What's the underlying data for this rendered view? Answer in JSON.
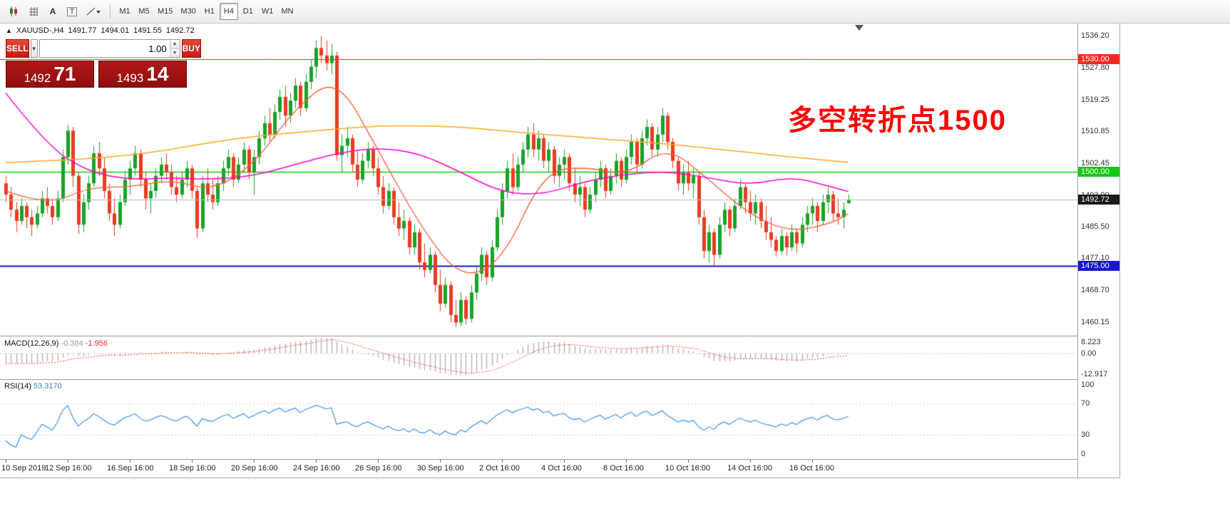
{
  "toolbar": {
    "icons": [
      "candlestick-tool-icon",
      "grid-icon",
      "text-label-icon",
      "text-box-icon",
      "line-studies-icon"
    ],
    "timeframes": [
      {
        "label": "M1",
        "active": false
      },
      {
        "label": "M5",
        "active": false
      },
      {
        "label": "M15",
        "active": false
      },
      {
        "label": "M30",
        "active": false
      },
      {
        "label": "H1",
        "active": false
      },
      {
        "label": "H4",
        "active": true
      },
      {
        "label": "D1",
        "active": false
      },
      {
        "label": "W1",
        "active": false
      },
      {
        "label": "MN",
        "active": false
      }
    ]
  },
  "chart_header": {
    "collapse_arrow": "▲",
    "symbol": "XAUUSD-,H4",
    "open": "1491.77",
    "high": "1494.01",
    "low": "1491.55",
    "close": "1492.72"
  },
  "one_click": {
    "sell_label": "SELL",
    "buy_label": "BUY",
    "volume": "1.00",
    "sell_price_big": "1492",
    "sell_price_pips": "71",
    "buy_price_big": "1493",
    "buy_price_pips": "14"
  },
  "annotation": {
    "text": "多空转折点1500",
    "color": "#fe0000"
  },
  "levels": [
    {
      "price": 1530.0,
      "label": "1530.00",
      "line_color": "#ff2020",
      "badge_bg": "#f52a1e",
      "width": 1
    },
    {
      "price": 1500.0,
      "label": "1500.00",
      "line_color": "#00d400",
      "badge_bg": "#14c814",
      "width": 1.4
    },
    {
      "price": 1475.0,
      "label": "1475.00",
      "line_color": "#1414c8",
      "badge_bg": "#1616d2",
      "width": 2
    }
  ],
  "current_price": {
    "value": 1492.72,
    "label": "1492.72",
    "badge_bg": "#1a1a1a",
    "line_color": "#b8b8b8"
  },
  "price_scale": {
    "ticks": [
      "1536.20",
      "1527.80",
      "1519.25",
      "1510.85",
      "1502.45",
      "1493.90",
      "1485.50",
      "1477.10",
      "1468.70",
      "1460.15"
    ]
  },
  "macd": {
    "label": "MACD(12,26,9)",
    "value": "-0.384",
    "signal": "-1.956",
    "scale": [
      {
        "label": "8.223",
        "value": 8.223
      },
      {
        "label": "0.00",
        "value": 0
      },
      {
        "label": "-12.917",
        "value": -12.917
      }
    ],
    "colors": {
      "histogram": "#b4b4b4",
      "signal": "#ff3b30"
    }
  },
  "rsi": {
    "label": "RSI(14)",
    "value": "53.3170",
    "scale": [
      {
        "label": "100",
        "value": 100
      },
      {
        "label": "70",
        "value": 70
      },
      {
        "label": "30",
        "value": 30
      },
      {
        "label": "0",
        "value": 0
      }
    ],
    "levels": [
      70,
      30
    ],
    "color": "#4d9be6"
  },
  "time_axis": {
    "labels": [
      {
        "text": "10 Sep 2019",
        "bar": 0
      },
      {
        "text": "12 Sep 16:00",
        "bar": 12
      },
      {
        "text": "16 Sep 16:00",
        "bar": 24
      },
      {
        "text": "18 Sep 16:00",
        "bar": 36
      },
      {
        "text": "20 Sep 16:00",
        "bar": 48
      },
      {
        "text": "24 Sep 16:00",
        "bar": 60
      },
      {
        "text": "26 Sep 16:00",
        "bar": 72
      },
      {
        "text": "30 Sep 16:00",
        "bar": 84
      },
      {
        "text": "2 Oct 16:00",
        "bar": 96
      },
      {
        "text": "4 Oct 16:00",
        "bar": 108
      },
      {
        "text": "8 Oct 16:00",
        "bar": 120
      },
      {
        "text": "10 Oct 16:00",
        "bar": 132
      },
      {
        "text": "14 Oct 16:00",
        "bar": 144
      },
      {
        "text": "16 Oct 16:00",
        "bar": 156
      }
    ]
  },
  "chart_data": {
    "type": "candlestick",
    "symbol": "XAUUSD",
    "timeframe": "H4",
    "ylim": [
      1456.5,
      1539.5
    ],
    "up_color": "#18a327",
    "down_color": "#ea3b23",
    "candles": [
      [
        1497,
        1499,
        1492,
        1494
      ],
      [
        1494,
        1496,
        1488,
        1490
      ],
      [
        1490,
        1492,
        1484,
        1487
      ],
      [
        1487,
        1493,
        1486,
        1491
      ],
      [
        1491,
        1492,
        1485,
        1488
      ],
      [
        1488,
        1490,
        1483,
        1486
      ],
      [
        1486,
        1491,
        1485,
        1489
      ],
      [
        1489,
        1495,
        1488,
        1493
      ],
      [
        1493,
        1496,
        1489,
        1491
      ],
      [
        1491,
        1493,
        1486,
        1488
      ],
      [
        1488,
        1495,
        1487,
        1493
      ],
      [
        1493,
        1506,
        1492,
        1504
      ],
      [
        1504,
        1512.5,
        1502,
        1511
      ],
      [
        1511,
        1512,
        1496,
        1499
      ],
      [
        1499,
        1500,
        1483.5,
        1486
      ],
      [
        1486,
        1494,
        1484,
        1492
      ],
      [
        1492,
        1499,
        1490,
        1497
      ],
      [
        1497,
        1507,
        1496,
        1505
      ],
      [
        1505,
        1508,
        1499,
        1501
      ],
      [
        1501,
        1504,
        1493,
        1495
      ],
      [
        1495,
        1497,
        1487,
        1489
      ],
      [
        1489,
        1493,
        1483,
        1486
      ],
      [
        1486,
        1494,
        1485,
        1492
      ],
      [
        1492,
        1500,
        1491,
        1498
      ],
      [
        1498,
        1503,
        1494,
        1501
      ],
      [
        1501,
        1507,
        1499,
        1505
      ],
      [
        1505,
        1506,
        1496,
        1498
      ],
      [
        1498,
        1500,
        1490,
        1493
      ],
      [
        1493,
        1497,
        1489,
        1495
      ],
      [
        1495,
        1501,
        1493,
        1499
      ],
      [
        1499,
        1504,
        1497,
        1502
      ],
      [
        1502,
        1505,
        1498,
        1500
      ],
      [
        1500,
        1502,
        1494,
        1496
      ],
      [
        1496,
        1499,
        1492,
        1494
      ],
      [
        1494,
        1500,
        1493,
        1498
      ],
      [
        1498,
        1503,
        1496,
        1501
      ],
      [
        1501,
        1502,
        1493,
        1495
      ],
      [
        1495,
        1496,
        1482.5,
        1485
      ],
      [
        1485,
        1499,
        1484,
        1497
      ],
      [
        1497,
        1501,
        1492,
        1494
      ],
      [
        1494,
        1498,
        1490,
        1492
      ],
      [
        1492,
        1499,
        1491,
        1497
      ],
      [
        1497,
        1503,
        1495,
        1501
      ],
      [
        1501,
        1506,
        1499,
        1504
      ],
      [
        1504,
        1505,
        1496,
        1498
      ],
      [
        1498,
        1504,
        1497,
        1502
      ],
      [
        1502,
        1508,
        1500,
        1506
      ],
      [
        1506,
        1507,
        1498,
        1500
      ],
      [
        1500,
        1506,
        1494,
        1504
      ],
      [
        1504,
        1511,
        1502,
        1509
      ],
      [
        1509,
        1515,
        1507,
        1513
      ],
      [
        1513,
        1517,
        1508,
        1510
      ],
      [
        1510,
        1518,
        1509,
        1516
      ],
      [
        1516,
        1522,
        1514,
        1520
      ],
      [
        1520,
        1523,
        1512,
        1515
      ],
      [
        1515,
        1521,
        1513,
        1519
      ],
      [
        1519,
        1525,
        1517,
        1523
      ],
      [
        1523,
        1524,
        1515,
        1517
      ],
      [
        1517,
        1526,
        1516,
        1524
      ],
      [
        1524,
        1530,
        1522,
        1528
      ],
      [
        1528,
        1535,
        1525,
        1533
      ],
      [
        1533,
        1536.2,
        1529,
        1531
      ],
      [
        1531,
        1535,
        1527,
        1529
      ],
      [
        1529,
        1534,
        1526,
        1531
      ],
      [
        1531,
        1532,
        1503,
        1504.5
      ],
      [
        1504.5,
        1510,
        1500,
        1507
      ],
      [
        1507,
        1512,
        1504,
        1509
      ],
      [
        1509,
        1510,
        1500,
        1502
      ],
      [
        1502,
        1506,
        1496,
        1498
      ],
      [
        1498,
        1505,
        1497,
        1503
      ],
      [
        1503,
        1508,
        1501,
        1506
      ],
      [
        1506,
        1507,
        1499,
        1501
      ],
      [
        1501,
        1504,
        1494,
        1496
      ],
      [
        1496,
        1499,
        1489,
        1491
      ],
      [
        1491,
        1497,
        1490,
        1495
      ],
      [
        1495,
        1496,
        1486,
        1488
      ],
      [
        1488,
        1492,
        1483,
        1485
      ],
      [
        1485,
        1490,
        1482,
        1487
      ],
      [
        1487,
        1488,
        1478,
        1480
      ],
      [
        1480,
        1486,
        1478,
        1484
      ],
      [
        1484,
        1485,
        1474,
        1476
      ],
      [
        1476,
        1481,
        1472,
        1474
      ],
      [
        1474,
        1480,
        1473,
        1478
      ],
      [
        1478,
        1479,
        1468,
        1470
      ],
      [
        1470,
        1474,
        1463,
        1465
      ],
      [
        1465,
        1472,
        1464,
        1470
      ],
      [
        1470,
        1471,
        1460,
        1462
      ],
      [
        1462,
        1466,
        1458.8,
        1460
      ],
      [
        1460,
        1468,
        1459,
        1466
      ],
      [
        1466,
        1467,
        1459.5,
        1461
      ],
      [
        1461,
        1470,
        1460,
        1468
      ],
      [
        1468,
        1475,
        1466,
        1473
      ],
      [
        1473,
        1480,
        1471,
        1478
      ],
      [
        1478,
        1479,
        1470,
        1472
      ],
      [
        1472,
        1482,
        1471,
        1480
      ],
      [
        1480,
        1490,
        1479,
        1488
      ],
      [
        1488,
        1497,
        1486,
        1495
      ],
      [
        1495,
        1503,
        1493,
        1501
      ],
      [
        1501,
        1505,
        1494,
        1496
      ],
      [
        1496,
        1504,
        1495,
        1502
      ],
      [
        1502,
        1508,
        1500,
        1506
      ],
      [
        1506,
        1512,
        1504,
        1510
      ],
      [
        1510,
        1513,
        1504,
        1506
      ],
      [
        1506,
        1511,
        1503,
        1509
      ],
      [
        1509,
        1510,
        1501,
        1503
      ],
      [
        1503,
        1508,
        1500,
        1506
      ],
      [
        1506,
        1507,
        1497,
        1499
      ],
      [
        1499,
        1504,
        1496,
        1502
      ],
      [
        1502,
        1506,
        1498,
        1504
      ],
      [
        1504,
        1505,
        1495,
        1497
      ],
      [
        1497,
        1501,
        1492,
        1494
      ],
      [
        1494,
        1499,
        1491,
        1496
      ],
      [
        1496,
        1497,
        1488,
        1490
      ],
      [
        1490,
        1496,
        1489,
        1494
      ],
      [
        1494,
        1500,
        1492,
        1498
      ],
      [
        1498,
        1503,
        1496,
        1501
      ],
      [
        1501,
        1502,
        1493,
        1495
      ],
      [
        1495,
        1501,
        1494,
        1499
      ],
      [
        1499,
        1505,
        1497,
        1503
      ],
      [
        1503,
        1504,
        1496,
        1498
      ],
      [
        1498,
        1506,
        1497,
        1504
      ],
      [
        1504,
        1510,
        1502,
        1508
      ],
      [
        1508,
        1509,
        1500,
        1502
      ],
      [
        1502,
        1511,
        1501,
        1509
      ],
      [
        1509,
        1514,
        1507,
        1512
      ],
      [
        1512,
        1513,
        1504,
        1506
      ],
      [
        1506,
        1512,
        1504,
        1510
      ],
      [
        1510,
        1517,
        1508,
        1515
      ],
      [
        1515,
        1516,
        1506,
        1508
      ],
      [
        1508,
        1509,
        1501,
        1503
      ],
      [
        1503,
        1504,
        1495,
        1497
      ],
      [
        1497,
        1502,
        1494,
        1500
      ],
      [
        1500,
        1503,
        1495,
        1497
      ],
      [
        1497,
        1501,
        1493,
        1499
      ],
      [
        1499,
        1500,
        1486,
        1488
      ],
      [
        1488,
        1490,
        1477,
        1479
      ],
      [
        1479,
        1486,
        1476,
        1484
      ],
      [
        1484,
        1485,
        1475.2,
        1478
      ],
      [
        1478,
        1488,
        1477,
        1486
      ],
      [
        1486,
        1492,
        1484,
        1490
      ],
      [
        1490,
        1491,
        1483,
        1485
      ],
      [
        1485,
        1493,
        1484,
        1491
      ],
      [
        1491,
        1498,
        1490,
        1496
      ],
      [
        1496,
        1497,
        1489,
        1492
      ],
      [
        1492,
        1495,
        1487,
        1489
      ],
      [
        1489,
        1494,
        1486,
        1492
      ],
      [
        1492,
        1493,
        1485,
        1487
      ],
      [
        1487,
        1491,
        1482,
        1484
      ],
      [
        1484,
        1488,
        1480,
        1482
      ],
      [
        1482,
        1483,
        1477.5,
        1479
      ],
      [
        1479,
        1485,
        1478,
        1483
      ],
      [
        1483,
        1484,
        1477.8,
        1480
      ],
      [
        1480,
        1486,
        1479,
        1484
      ],
      [
        1484,
        1485,
        1478.5,
        1481
      ],
      [
        1481,
        1488,
        1480,
        1486
      ],
      [
        1486,
        1491,
        1484,
        1489
      ],
      [
        1489,
        1493,
        1486,
        1491
      ],
      [
        1491,
        1492,
        1484,
        1487
      ],
      [
        1487,
        1494,
        1486,
        1492
      ],
      [
        1492,
        1496,
        1489,
        1494
      ],
      [
        1494,
        1495,
        1487,
        1489
      ],
      [
        1489,
        1493,
        1486,
        1488
      ],
      [
        1488,
        1492,
        1485,
        1490
      ],
      [
        1491.77,
        1494.01,
        1491.55,
        1492.72
      ]
    ],
    "pre_closes": [
      1535,
      1534,
      1536,
      1533,
      1532,
      1533,
      1531,
      1530,
      1531,
      1529,
      1528,
      1529,
      1527,
      1526,
      1527,
      1525,
      1524,
      1525,
      1523,
      1522,
      1523,
      1521,
      1520,
      1521,
      1519,
      1518,
      1519,
      1517,
      1516,
      1517,
      1515,
      1514,
      1515,
      1513,
      1512,
      1513,
      1511,
      1510,
      1509,
      1508,
      1507,
      1506,
      1505,
      1504,
      1503,
      1502,
      1501,
      1500,
      1499,
      1498,
      1497,
      1496,
      1495,
      1496,
      1495,
      1494,
      1495,
      1494,
      1493,
      1494
    ],
    "moving_averages": {
      "bars": [
        0,
        8,
        16,
        24,
        32,
        40,
        48,
        56,
        64,
        72,
        80,
        88,
        96,
        104,
        112,
        120,
        128,
        136,
        144,
        152,
        160,
        163
      ],
      "series": [
        {
          "name": "ma-fast-red",
          "color": "#ff5a3c",
          "width": 1.3,
          "prices": [
            1495,
            1491,
            1496,
            1496,
            1498,
            1495,
            1502,
            1517,
            1525.5,
            1506,
            1486,
            1471.5,
            1476,
            1500,
            1501.5,
            1499,
            1507,
            1498,
            1488.5,
            1484,
            1486.5,
            1489
          ]
        },
        {
          "name": "ma-mid-magenta",
          "color": "#ff00d0",
          "width": 1.5,
          "prices": [
            1521,
            1507,
            1500,
            1498,
            1498.5,
            1498,
            1499,
            1502,
            1505,
            1506.5,
            1505,
            1500,
            1494.5,
            1494,
            1497.5,
            1499.5,
            1500.2,
            1498.5,
            1496.5,
            1498.8,
            1496,
            1494.8
          ]
        },
        {
          "name": "ma-slow-orange",
          "color": "#ffa520",
          "width": 1.5,
          "prices": [
            1502.5,
            1503,
            1503.5,
            1504.5,
            1506,
            1508,
            1509.5,
            1510.5,
            1511.5,
            1512.3,
            1512.3,
            1512,
            1511,
            1510,
            1509.2,
            1508.3,
            1507.5,
            1506.3,
            1505.2,
            1504,
            1503,
            1502.6
          ]
        }
      ]
    }
  }
}
